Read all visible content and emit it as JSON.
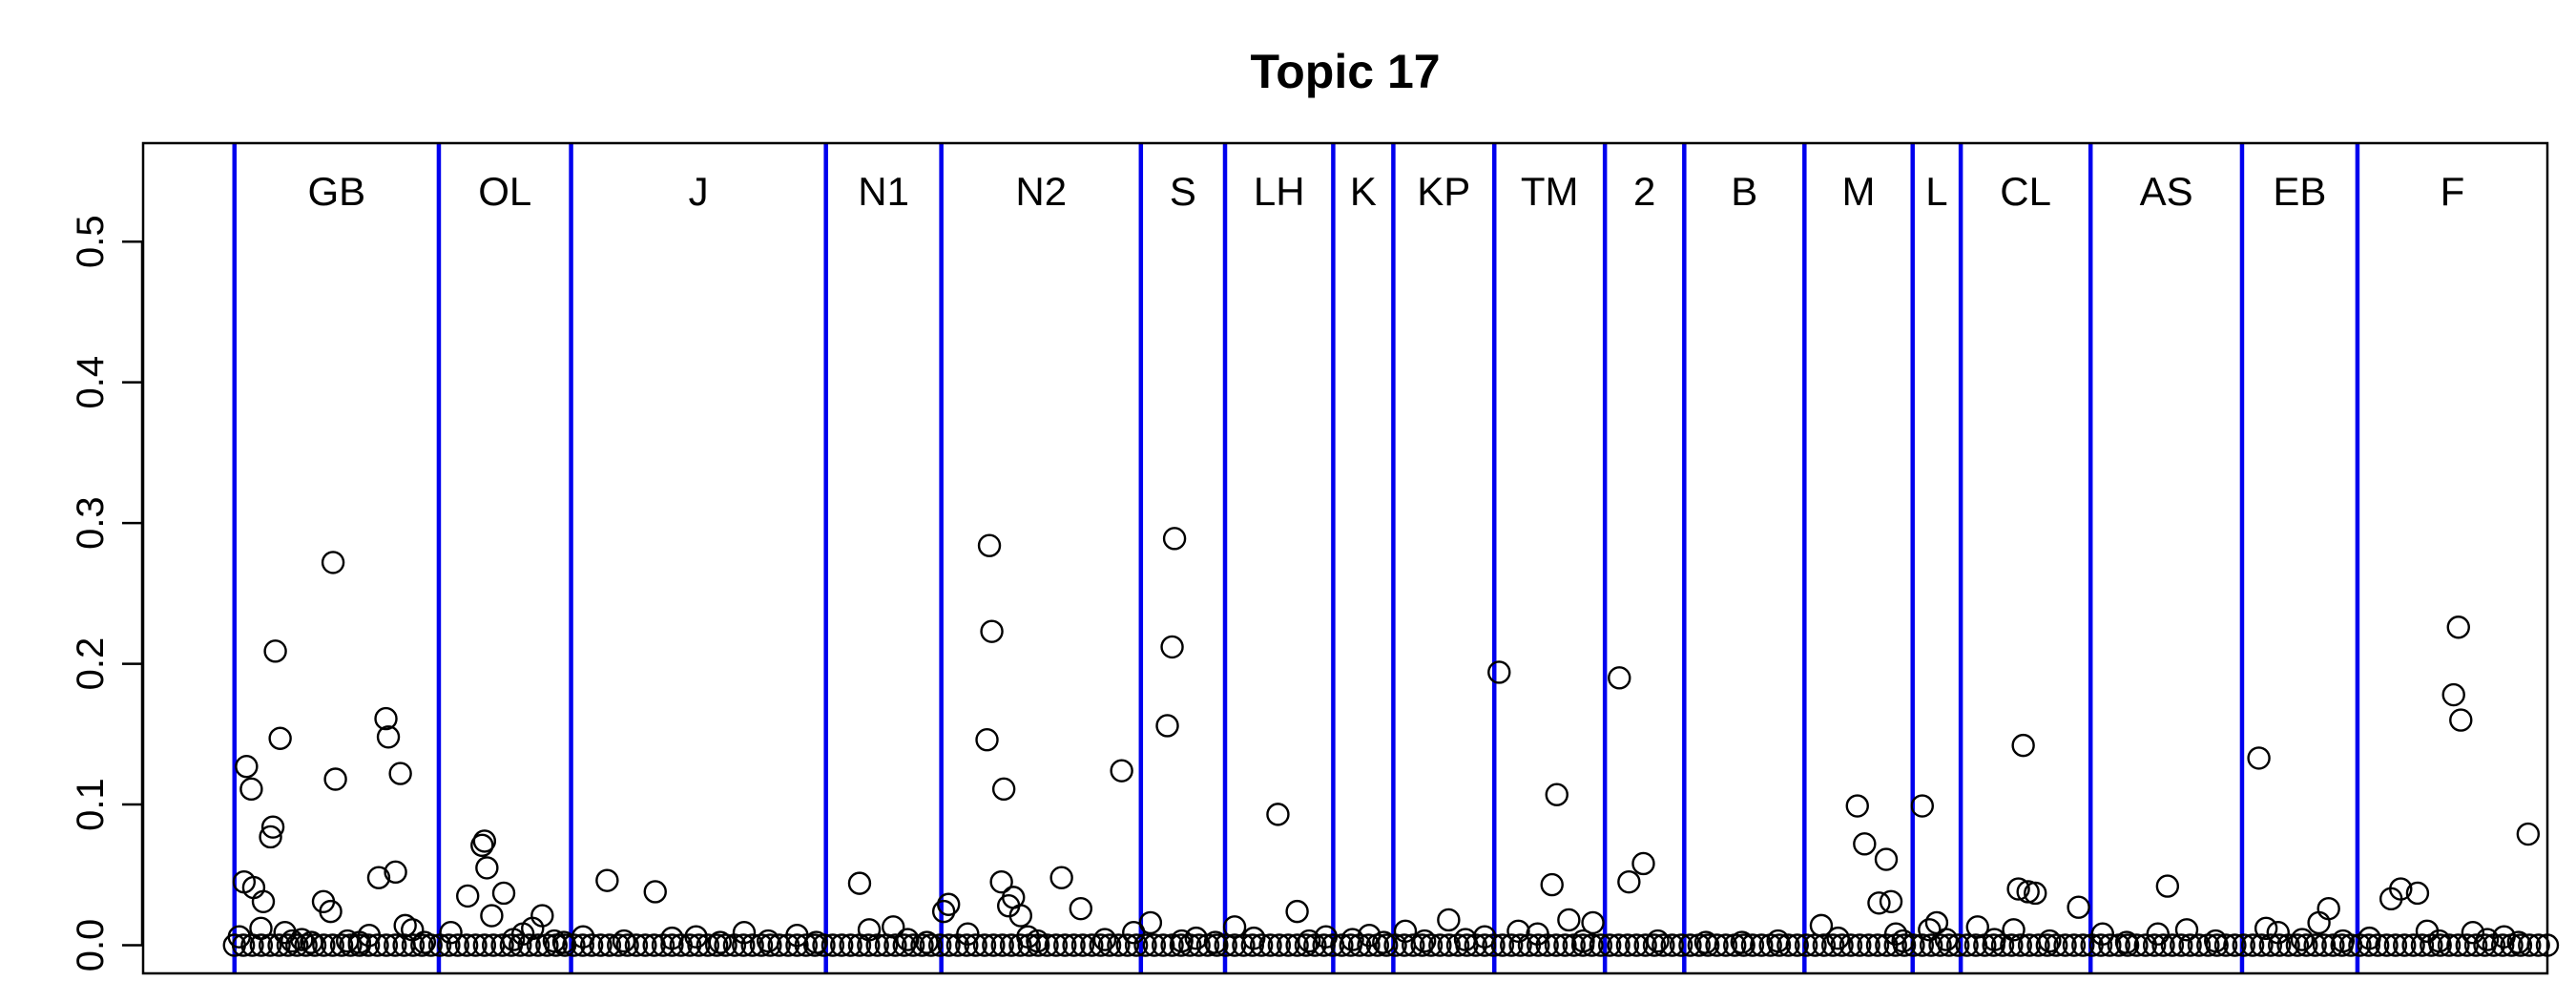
{
  "chart_data": {
    "type": "scatter",
    "title": "Topic 17",
    "xlabel": "",
    "ylabel": "",
    "ylim": [
      -0.02,
      0.57
    ],
    "xlim": [
      0,
      100
    ],
    "y_ticks": [
      0.0,
      0.1,
      0.2,
      0.3,
      0.4,
      0.5
    ],
    "y_tick_labels": [
      "0.0",
      "0.1",
      "0.2",
      "0.3",
      "0.4",
      "0.5"
    ],
    "grid": false,
    "legend": "none",
    "colors": {
      "divider": "#0000ee",
      "point": "#000000"
    },
    "x_axis_note": "x values are sample index positions in percent of the plotted range (no x axis printed)",
    "groups": [
      {
        "label": "GB",
        "x_start": 3.8,
        "x_end": 12.3
      },
      {
        "label": "OL",
        "x_start": 12.3,
        "x_end": 17.8
      },
      {
        "label": "J",
        "x_start": 17.8,
        "x_end": 28.4
      },
      {
        "label": "N1",
        "x_start": 28.4,
        "x_end": 33.2
      },
      {
        "label": "N2",
        "x_start": 33.2,
        "x_end": 41.5
      },
      {
        "label": "S",
        "x_start": 41.5,
        "x_end": 45.0
      },
      {
        "label": "LH",
        "x_start": 45.0,
        "x_end": 49.5
      },
      {
        "label": "K",
        "x_start": 49.5,
        "x_end": 52.0
      },
      {
        "label": "KP",
        "x_start": 52.0,
        "x_end": 56.2
      },
      {
        "label": "TM",
        "x_start": 56.2,
        "x_end": 60.8
      },
      {
        "label": "2",
        "x_start": 60.8,
        "x_end": 64.1
      },
      {
        "label": "B",
        "x_start": 64.1,
        "x_end": 69.1
      },
      {
        "label": "M",
        "x_start": 69.1,
        "x_end": 73.6
      },
      {
        "label": "L",
        "x_start": 73.6,
        "x_end": 75.6
      },
      {
        "label": "CL",
        "x_start": 75.6,
        "x_end": 81.0
      },
      {
        "label": "AS",
        "x_start": 81.0,
        "x_end": 87.3
      },
      {
        "label": "EB",
        "x_start": 87.3,
        "x_end": 92.1
      },
      {
        "label": "F",
        "x_start": 92.1,
        "x_end": 100.0
      }
    ],
    "series": [
      {
        "points": [
          [
            4.3,
            0.127
          ],
          [
            4.5,
            0.111
          ],
          [
            4.2,
            0.045
          ],
          [
            4.6,
            0.041
          ],
          [
            5.0,
            0.031
          ],
          [
            4.9,
            0.012
          ],
          [
            5.3,
            0.077
          ],
          [
            5.4,
            0.084
          ],
          [
            5.5,
            0.209
          ],
          [
            5.7,
            0.147
          ],
          [
            5.9,
            0.009
          ],
          [
            6.2,
            0.003
          ],
          [
            6.6,
            0.004
          ],
          [
            7.0,
            0.002
          ],
          [
            7.5,
            0.031
          ],
          [
            7.8,
            0.024
          ],
          [
            7.9,
            0.272
          ],
          [
            8.0,
            0.118
          ],
          [
            8.5,
            0.003
          ],
          [
            9.0,
            0.002
          ],
          [
            9.4,
            0.007
          ],
          [
            9.8,
            0.048
          ],
          [
            10.1,
            0.161
          ],
          [
            10.2,
            0.148
          ],
          [
            10.5,
            0.052
          ],
          [
            10.7,
            0.122
          ],
          [
            10.9,
            0.014
          ],
          [
            11.2,
            0.011
          ],
          [
            11.7,
            0.002
          ],
          [
            4.0,
            0.006
          ],
          [
            12.8,
            0.009
          ],
          [
            13.5,
            0.035
          ],
          [
            14.1,
            0.071
          ],
          [
            14.2,
            0.074
          ],
          [
            14.3,
            0.055
          ],
          [
            14.5,
            0.021
          ],
          [
            15.0,
            0.037
          ],
          [
            15.4,
            0.004
          ],
          [
            15.8,
            0.008
          ],
          [
            16.2,
            0.012
          ],
          [
            16.6,
            0.021
          ],
          [
            17.1,
            0.003
          ],
          [
            17.5,
            0.002
          ],
          [
            18.3,
            0.006
          ],
          [
            19.3,
            0.046
          ],
          [
            20.0,
            0.003
          ],
          [
            21.3,
            0.038
          ],
          [
            22.0,
            0.005
          ],
          [
            23.0,
            0.006
          ],
          [
            24.0,
            0.002
          ],
          [
            25.0,
            0.009
          ],
          [
            26.0,
            0.003
          ],
          [
            27.2,
            0.007
          ],
          [
            28.0,
            0.002
          ],
          [
            29.8,
            0.044
          ],
          [
            30.2,
            0.011
          ],
          [
            31.2,
            0.013
          ],
          [
            31.8,
            0.004
          ],
          [
            32.6,
            0.002
          ],
          [
            33.3,
            0.024
          ],
          [
            33.5,
            0.029
          ],
          [
            34.3,
            0.008
          ],
          [
            35.2,
            0.284
          ],
          [
            35.3,
            0.223
          ],
          [
            35.1,
            0.146
          ],
          [
            35.8,
            0.111
          ],
          [
            35.7,
            0.045
          ],
          [
            36.2,
            0.034
          ],
          [
            36.0,
            0.028
          ],
          [
            36.5,
            0.021
          ],
          [
            36.8,
            0.006
          ],
          [
            37.2,
            0.003
          ],
          [
            38.2,
            0.048
          ],
          [
            39.0,
            0.026
          ],
          [
            40.0,
            0.004
          ],
          [
            40.7,
            0.124
          ],
          [
            41.2,
            0.009
          ],
          [
            41.9,
            0.016
          ],
          [
            42.6,
            0.156
          ],
          [
            42.8,
            0.212
          ],
          [
            42.9,
            0.289
          ],
          [
            43.2,
            0.003
          ],
          [
            43.8,
            0.005
          ],
          [
            44.6,
            0.002
          ],
          [
            45.4,
            0.013
          ],
          [
            46.2,
            0.005
          ],
          [
            47.2,
            0.093
          ],
          [
            48.0,
            0.024
          ],
          [
            48.5,
            0.003
          ],
          [
            49.2,
            0.006
          ],
          [
            50.3,
            0.004
          ],
          [
            51.0,
            0.007
          ],
          [
            51.6,
            0.002
          ],
          [
            52.5,
            0.01
          ],
          [
            53.3,
            0.003
          ],
          [
            54.3,
            0.018
          ],
          [
            55.0,
            0.004
          ],
          [
            55.8,
            0.006
          ],
          [
            56.4,
            0.194
          ],
          [
            57.2,
            0.01
          ],
          [
            58.0,
            0.008
          ],
          [
            58.6,
            0.043
          ],
          [
            58.8,
            0.107
          ],
          [
            59.3,
            0.018
          ],
          [
            59.9,
            0.003
          ],
          [
            60.3,
            0.016
          ],
          [
            61.4,
            0.19
          ],
          [
            61.8,
            0.045
          ],
          [
            62.4,
            0.058
          ],
          [
            63.0,
            0.003
          ],
          [
            65.0,
            0.002
          ],
          [
            66.5,
            0.002
          ],
          [
            68.0,
            0.003
          ],
          [
            69.8,
            0.014
          ],
          [
            70.5,
            0.005
          ],
          [
            71.3,
            0.099
          ],
          [
            71.6,
            0.072
          ],
          [
            72.2,
            0.03
          ],
          [
            72.5,
            0.061
          ],
          [
            72.7,
            0.031
          ],
          [
            72.9,
            0.008
          ],
          [
            73.2,
            0.003
          ],
          [
            74.0,
            0.099
          ],
          [
            74.3,
            0.011
          ],
          [
            74.6,
            0.016
          ],
          [
            75.0,
            0.004
          ],
          [
            76.3,
            0.013
          ],
          [
            77.0,
            0.004
          ],
          [
            77.8,
            0.011
          ],
          [
            78.0,
            0.04
          ],
          [
            78.2,
            0.142
          ],
          [
            78.4,
            0.038
          ],
          [
            78.7,
            0.037
          ],
          [
            79.3,
            0.003
          ],
          [
            80.5,
            0.027
          ],
          [
            81.5,
            0.008
          ],
          [
            82.5,
            0.002
          ],
          [
            83.8,
            0.008
          ],
          [
            84.2,
            0.042
          ],
          [
            85.0,
            0.011
          ],
          [
            86.2,
            0.003
          ],
          [
            88.0,
            0.133
          ],
          [
            88.3,
            0.012
          ],
          [
            88.8,
            0.009
          ],
          [
            89.8,
            0.004
          ],
          [
            90.5,
            0.016
          ],
          [
            90.9,
            0.026
          ],
          [
            91.5,
            0.003
          ],
          [
            92.6,
            0.005
          ],
          [
            93.5,
            0.033
          ],
          [
            93.9,
            0.04
          ],
          [
            94.6,
            0.037
          ],
          [
            95.0,
            0.01
          ],
          [
            95.5,
            0.003
          ],
          [
            96.1,
            0.178
          ],
          [
            96.3,
            0.226
          ],
          [
            96.4,
            0.16
          ],
          [
            96.9,
            0.009
          ],
          [
            97.5,
            0.004
          ],
          [
            98.2,
            0.006
          ],
          [
            98.8,
            0.002
          ],
          [
            99.2,
            0.079
          ]
        ]
      }
    ]
  }
}
